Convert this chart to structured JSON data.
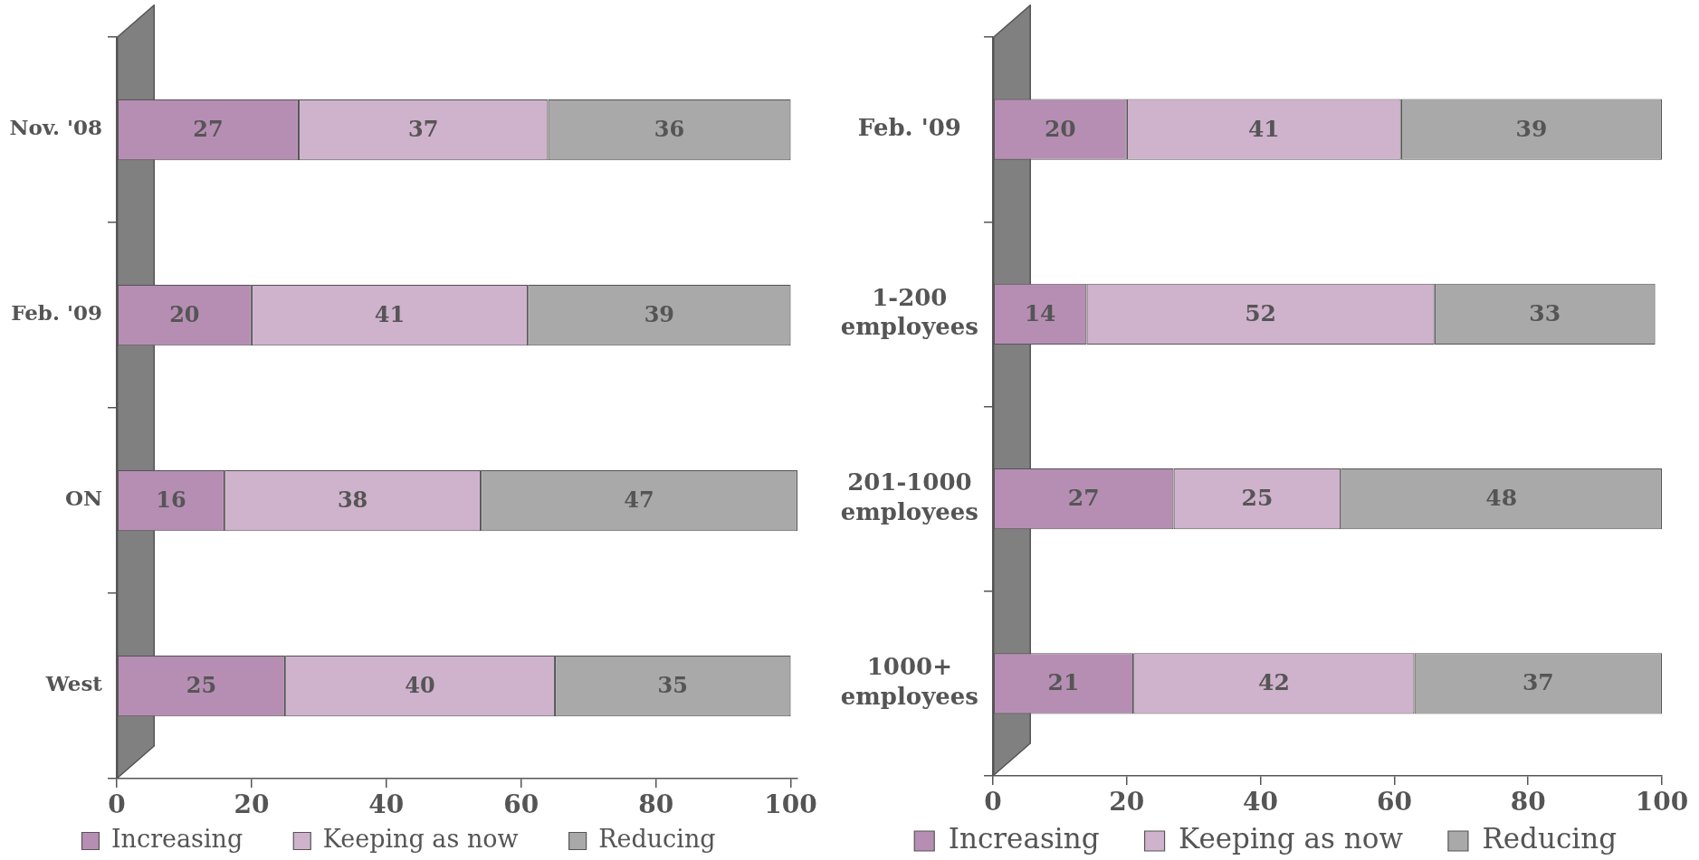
{
  "chart_data": [
    {
      "type": "bar",
      "orientation": "horizontal",
      "stacked": true,
      "categories": [
        "Nov. '08",
        "Feb. '09",
        "ON",
        "West"
      ],
      "series": [
        {
          "name": "Increasing",
          "color": "#b68eb3",
          "values": [
            27,
            20,
            16,
            25
          ]
        },
        {
          "name": "Keeping as now",
          "color": "#cfb2cc",
          "values": [
            37,
            41,
            38,
            40
          ]
        },
        {
          "name": "Reducing",
          "color": "#a9a9a9",
          "values": [
            36,
            39,
            47,
            35
          ]
        }
      ],
      "xlim": [
        0,
        101
      ],
      "xticks": [
        0,
        20,
        40,
        60,
        80,
        100
      ],
      "data_labels": true,
      "legend": "bottom"
    },
    {
      "type": "bar",
      "orientation": "horizontal",
      "stacked": true,
      "categories": [
        "Feb. '09",
        "1-200 employees",
        "201-1000 employees",
        "1000+ employees"
      ],
      "series": [
        {
          "name": "Increasing",
          "color": "#b68eb3",
          "values": [
            20,
            14,
            27,
            21
          ]
        },
        {
          "name": "Keeping as now",
          "color": "#cfb2cc",
          "values": [
            41,
            52,
            25,
            42
          ]
        },
        {
          "name": "Reducing",
          "color": "#a9a9a9",
          "values": [
            39,
            33,
            48,
            37
          ]
        }
      ],
      "xlim": [
        0,
        100
      ],
      "xticks": [
        0,
        20,
        40,
        60,
        80,
        100
      ],
      "data_labels": true,
      "legend": "bottom"
    }
  ]
}
